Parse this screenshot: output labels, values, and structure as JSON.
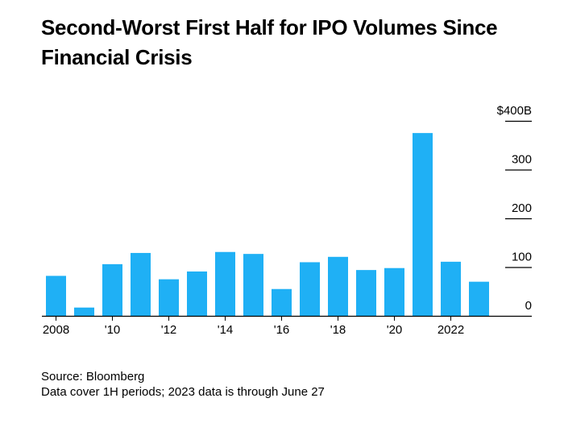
{
  "title": "Second-Worst First Half for IPO Volumes Since Financial Crisis",
  "footer": {
    "source": "Source: Bloomberg",
    "note": "Data cover 1H periods; 2023 data is through June 27"
  },
  "colors": {
    "bar": "#1fb0f5",
    "axis": "#000000",
    "text": "#000000"
  },
  "chart_data": {
    "type": "bar",
    "title": "Second-Worst First Half for IPO Volumes Since Financial Crisis",
    "xlabel": "",
    "ylabel": "",
    "categories": [
      "2008",
      "2009",
      "2010",
      "2011",
      "2012",
      "2013",
      "2014",
      "2015",
      "2016",
      "2017",
      "2018",
      "2019",
      "2020",
      "2021",
      "2022",
      "2023"
    ],
    "values": [
      82,
      17,
      106,
      129,
      75,
      91,
      131,
      127,
      55,
      110,
      121,
      94,
      98,
      375,
      111,
      70
    ],
    "x_tick_labels": [
      "2008",
      "'10",
      "'12",
      "'14",
      "'16",
      "'18",
      "'20",
      "2022"
    ],
    "x_tick_categories": [
      "2008",
      "2010",
      "2012",
      "2014",
      "2016",
      "2018",
      "2020",
      "2022"
    ],
    "y_ticks": [
      0,
      100,
      200,
      300,
      400
    ],
    "y_tick_labels": [
      "0",
      "100",
      "200",
      "300",
      "$400B"
    ],
    "ylim": [
      0,
      400
    ],
    "y_axis_side": "right",
    "grid": false,
    "legend": "none"
  }
}
